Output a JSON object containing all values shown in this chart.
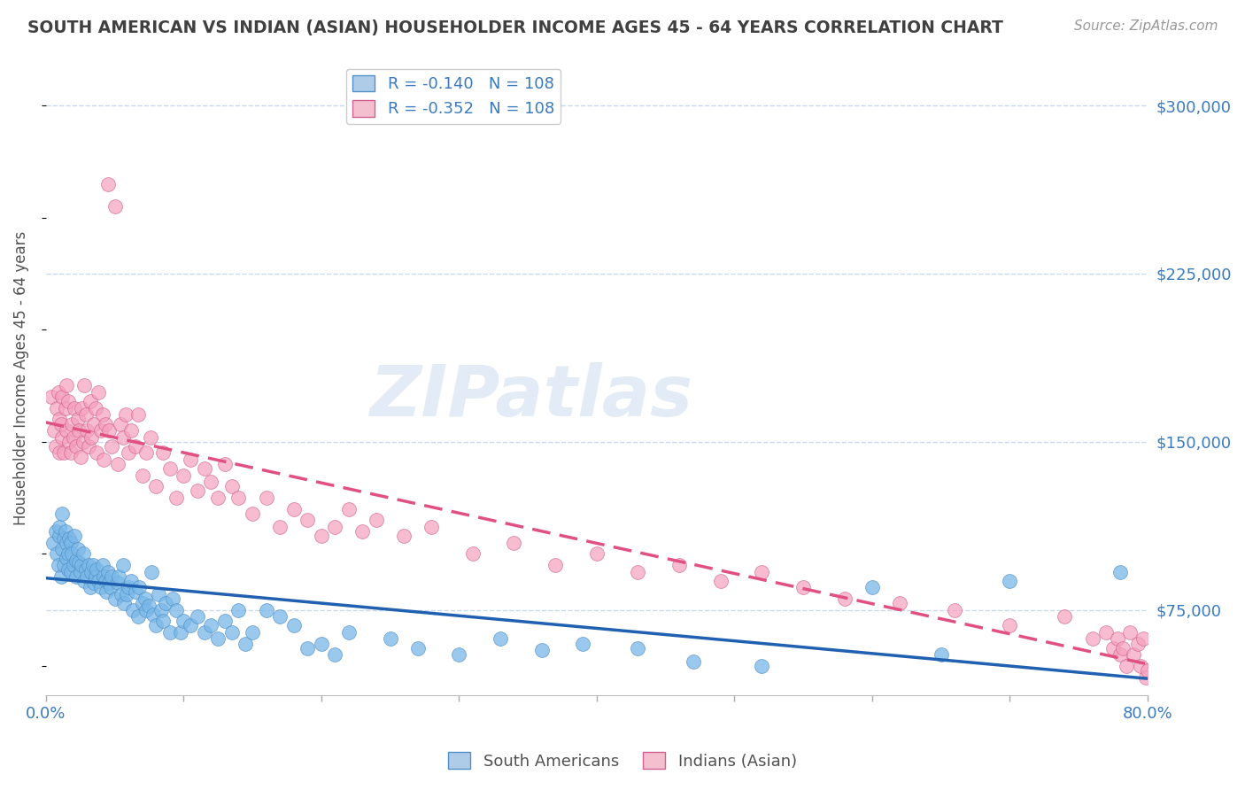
{
  "title": "SOUTH AMERICAN VS INDIAN (ASIAN) HOUSEHOLDER INCOME AGES 45 - 64 YEARS CORRELATION CHART",
  "source_text": "Source: ZipAtlas.com",
  "ylabel": "Householder Income Ages 45 - 64 years",
  "xlim": [
    0.0,
    0.8
  ],
  "ylim": [
    37000,
    320000
  ],
  "yticks": [
    75000,
    150000,
    225000,
    300000
  ],
  "ytick_labels": [
    "$75,000",
    "$150,000",
    "$225,000",
    "$300,000"
  ],
  "xticks": [
    0.0,
    0.1,
    0.2,
    0.3,
    0.4,
    0.5,
    0.6,
    0.7,
    0.8
  ],
  "blue_R": -0.14,
  "blue_N": 108,
  "pink_R": -0.352,
  "pink_N": 108,
  "blue_color": "#7ab8e8",
  "pink_color": "#f4a0bc",
  "blue_edge_color": "#5090c8",
  "pink_edge_color": "#d06090",
  "blue_line_color": "#2060b0",
  "pink_line_color": "#e05080",
  "blue_fill_color": "#aecce8",
  "pink_fill_color": "#f4c0d0",
  "bg_color": "#ffffff",
  "grid_color": "#c8d8ee",
  "title_color": "#404040",
  "axis_label_color": "#505050",
  "tick_label_color": "#3a7abf",
  "source_color": "#999999",
  "watermark_text": "ZIPatlas",
  "legend_blue_label": "South Americans",
  "legend_pink_label": "Indians (Asian)",
  "blue_x": [
    0.005,
    0.007,
    0.008,
    0.009,
    0.01,
    0.01,
    0.011,
    0.012,
    0.012,
    0.013,
    0.013,
    0.014,
    0.015,
    0.015,
    0.016,
    0.016,
    0.017,
    0.018,
    0.018,
    0.019,
    0.02,
    0.021,
    0.022,
    0.022,
    0.023,
    0.024,
    0.025,
    0.026,
    0.027,
    0.028,
    0.029,
    0.03,
    0.031,
    0.032,
    0.033,
    0.034,
    0.035,
    0.036,
    0.037,
    0.038,
    0.04,
    0.041,
    0.042,
    0.043,
    0.044,
    0.045,
    0.046,
    0.047,
    0.048,
    0.05,
    0.052,
    0.053,
    0.055,
    0.056,
    0.057,
    0.059,
    0.06,
    0.062,
    0.063,
    0.065,
    0.067,
    0.068,
    0.07,
    0.072,
    0.073,
    0.075,
    0.077,
    0.078,
    0.08,
    0.082,
    0.084,
    0.085,
    0.087,
    0.09,
    0.092,
    0.095,
    0.098,
    0.1,
    0.105,
    0.11,
    0.115,
    0.12,
    0.125,
    0.13,
    0.135,
    0.14,
    0.145,
    0.15,
    0.16,
    0.17,
    0.18,
    0.19,
    0.2,
    0.21,
    0.22,
    0.25,
    0.27,
    0.3,
    0.33,
    0.36,
    0.39,
    0.43,
    0.47,
    0.52,
    0.6,
    0.65,
    0.7,
    0.78
  ],
  "blue_y": [
    105000,
    110000,
    100000,
    95000,
    108000,
    112000,
    90000,
    102000,
    118000,
    107000,
    95000,
    110000,
    98000,
    105000,
    100000,
    93000,
    107000,
    92000,
    105000,
    100000,
    95000,
    108000,
    90000,
    97000,
    102000,
    96000,
    92000,
    95000,
    100000,
    88000,
    93000,
    90000,
    95000,
    85000,
    92000,
    95000,
    87000,
    90000,
    93000,
    88000,
    85000,
    95000,
    90000,
    88000,
    83000,
    92000,
    87000,
    85000,
    90000,
    80000,
    87000,
    90000,
    82000,
    95000,
    78000,
    82000,
    85000,
    88000,
    75000,
    83000,
    72000,
    85000,
    78000,
    80000,
    75000,
    77000,
    92000,
    73000,
    68000,
    82000,
    75000,
    70000,
    78000,
    65000,
    80000,
    75000,
    65000,
    70000,
    68000,
    72000,
    65000,
    68000,
    62000,
    70000,
    65000,
    75000,
    60000,
    65000,
    75000,
    72000,
    68000,
    58000,
    60000,
    55000,
    65000,
    62000,
    58000,
    55000,
    62000,
    57000,
    60000,
    58000,
    52000,
    50000,
    85000,
    55000,
    88000,
    92000
  ],
  "pink_x": [
    0.004,
    0.006,
    0.007,
    0.008,
    0.009,
    0.01,
    0.01,
    0.011,
    0.012,
    0.012,
    0.013,
    0.014,
    0.015,
    0.015,
    0.016,
    0.017,
    0.018,
    0.019,
    0.02,
    0.021,
    0.022,
    0.023,
    0.024,
    0.025,
    0.026,
    0.027,
    0.028,
    0.029,
    0.03,
    0.031,
    0.032,
    0.033,
    0.035,
    0.036,
    0.037,
    0.038,
    0.04,
    0.041,
    0.042,
    0.043,
    0.045,
    0.046,
    0.048,
    0.05,
    0.052,
    0.054,
    0.056,
    0.058,
    0.06,
    0.062,
    0.065,
    0.067,
    0.07,
    0.073,
    0.076,
    0.08,
    0.085,
    0.09,
    0.095,
    0.1,
    0.105,
    0.11,
    0.115,
    0.12,
    0.125,
    0.13,
    0.135,
    0.14,
    0.15,
    0.16,
    0.17,
    0.18,
    0.19,
    0.2,
    0.21,
    0.22,
    0.23,
    0.24,
    0.26,
    0.28,
    0.31,
    0.34,
    0.37,
    0.4,
    0.43,
    0.46,
    0.49,
    0.52,
    0.55,
    0.58,
    0.62,
    0.66,
    0.7,
    0.74,
    0.76,
    0.77,
    0.775,
    0.778,
    0.78,
    0.782,
    0.785,
    0.787,
    0.79,
    0.793,
    0.795,
    0.797,
    0.799,
    0.8
  ],
  "pink_y": [
    170000,
    155000,
    148000,
    165000,
    172000,
    160000,
    145000,
    158000,
    152000,
    170000,
    145000,
    165000,
    175000,
    155000,
    168000,
    150000,
    145000,
    158000,
    152000,
    165000,
    148000,
    160000,
    155000,
    143000,
    165000,
    150000,
    175000,
    162000,
    155000,
    148000,
    168000,
    152000,
    158000,
    165000,
    145000,
    172000,
    155000,
    162000,
    142000,
    158000,
    265000,
    155000,
    148000,
    255000,
    140000,
    158000,
    152000,
    162000,
    145000,
    155000,
    148000,
    162000,
    135000,
    145000,
    152000,
    130000,
    145000,
    138000,
    125000,
    135000,
    142000,
    128000,
    138000,
    132000,
    125000,
    140000,
    130000,
    125000,
    118000,
    125000,
    112000,
    120000,
    115000,
    108000,
    112000,
    120000,
    110000,
    115000,
    108000,
    112000,
    100000,
    105000,
    95000,
    100000,
    92000,
    95000,
    88000,
    92000,
    85000,
    80000,
    78000,
    75000,
    68000,
    72000,
    62000,
    65000,
    58000,
    62000,
    55000,
    58000,
    50000,
    65000,
    55000,
    60000,
    50000,
    62000,
    45000,
    48000
  ]
}
